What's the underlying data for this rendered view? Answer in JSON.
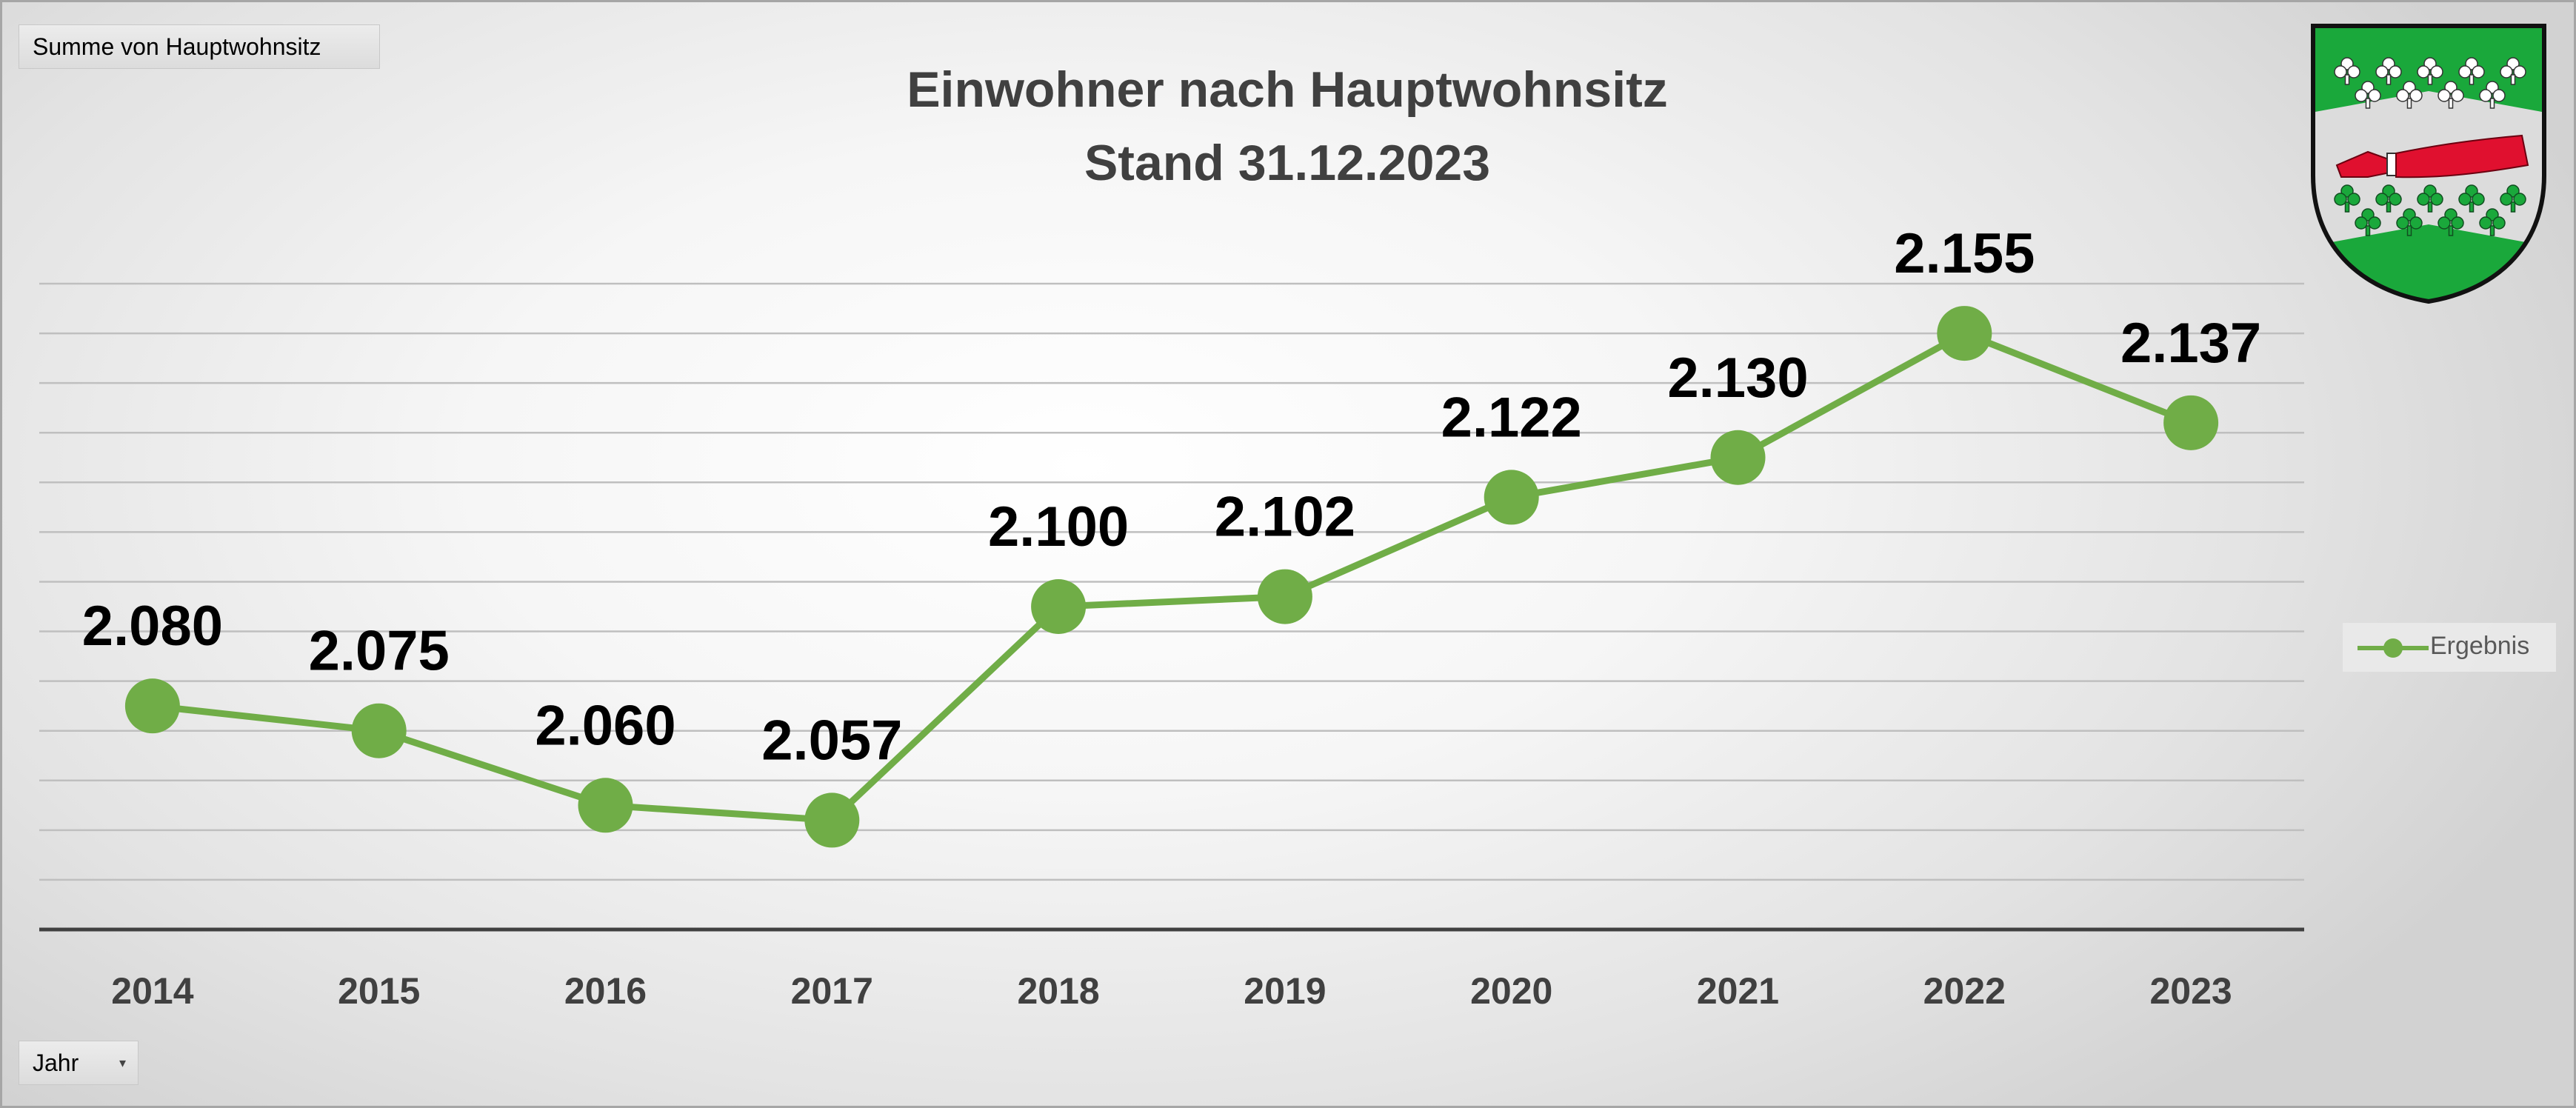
{
  "pivot_fields": {
    "value_field": "Summe von Hauptwohnsitz",
    "axis_field": "Jahr"
  },
  "colors": {
    "series": "#70ad47",
    "title": "#404040",
    "labels": "#000000",
    "axis_labels": "#404040",
    "gridlines": "#bfbfbf",
    "axis_line": "#404040"
  },
  "chart_data": {
    "type": "line",
    "title": "Einwohner nach Hauptwohnsitz",
    "subtitle": "Stand 31.12.2023",
    "categories": [
      "2014",
      "2015",
      "2016",
      "2017",
      "2018",
      "2019",
      "2020",
      "2021",
      "2022",
      "2023"
    ],
    "series": [
      {
        "name": "Ergebnis",
        "values": [
          2080,
          2075,
          2060,
          2057,
          2100,
          2102,
          2122,
          2130,
          2155,
          2137
        ],
        "labels": [
          "2.080",
          "2.075",
          "2.060",
          "2.057",
          "2.100",
          "2.102",
          "2.122",
          "2.130",
          "2.155",
          "2.137"
        ]
      }
    ],
    "ylim": [
      2035,
      2165
    ],
    "y_grid_step": 10,
    "grid": true,
    "y_axis_labels_shown": false,
    "legend_position": "right",
    "marker": "circle"
  },
  "crest": {
    "icon": "coat-of-arms-icon",
    "colors": {
      "green": "#1aa83b",
      "silver": "#dcdcdc",
      "red": "#e0102f"
    }
  }
}
